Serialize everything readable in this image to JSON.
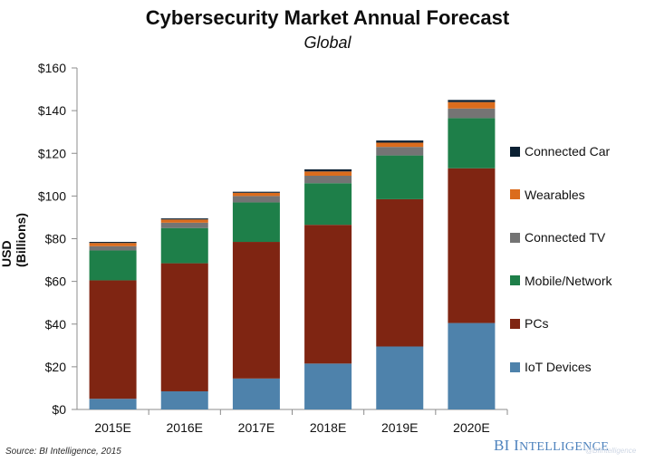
{
  "title": "Cybersecurity Market Annual Forecast",
  "subtitle": "Global",
  "source": "Source: BI Intelligence, 2015",
  "brand": {
    "first": "BI",
    "second_initial": "I",
    "second_rest": "NTELLIGENCE",
    "watermark": "@BIIntelligence"
  },
  "chart_data": {
    "type": "bar",
    "stacked": true,
    "categories": [
      "2015E",
      "2016E",
      "2017E",
      "2018E",
      "2019E",
      "2020E"
    ],
    "ylabel": "USD (Billions)",
    "ylim": [
      0,
      160
    ],
    "yticks": [
      0,
      20,
      40,
      60,
      80,
      100,
      120,
      140,
      160
    ],
    "ytick_labels": [
      "$0",
      "$20",
      "$40",
      "$60",
      "$80",
      "$100",
      "$120",
      "$140",
      "$160"
    ],
    "grid": false,
    "legend": "right",
    "series": [
      {
        "name": "IoT Devices",
        "color": "#4e82ab",
        "values": [
          5,
          8.5,
          14.5,
          21.5,
          29.5,
          40.5
        ]
      },
      {
        "name": "PCs",
        "color": "#7f2512",
        "values": [
          55.5,
          60,
          64,
          65,
          69,
          72.5
        ]
      },
      {
        "name": "Mobile/Network",
        "color": "#1e7f49",
        "values": [
          14,
          16.5,
          18.5,
          19.5,
          20.5,
          23.5
        ]
      },
      {
        "name": "Connected TV",
        "color": "#747474",
        "values": [
          2,
          2.5,
          3,
          3.5,
          4,
          4.5
        ]
      },
      {
        "name": "Wearables",
        "color": "#db6c1d",
        "values": [
          1.5,
          1.5,
          1.5,
          2,
          2,
          3
        ]
      },
      {
        "name": "Connected Car",
        "color": "#0b2033",
        "values": [
          0.5,
          0.5,
          0.5,
          1,
          1,
          1
        ]
      }
    ],
    "legend_order": [
      "Connected Car",
      "Wearables",
      "Connected TV",
      "Mobile/Network",
      "PCs",
      "IoT Devices"
    ]
  }
}
